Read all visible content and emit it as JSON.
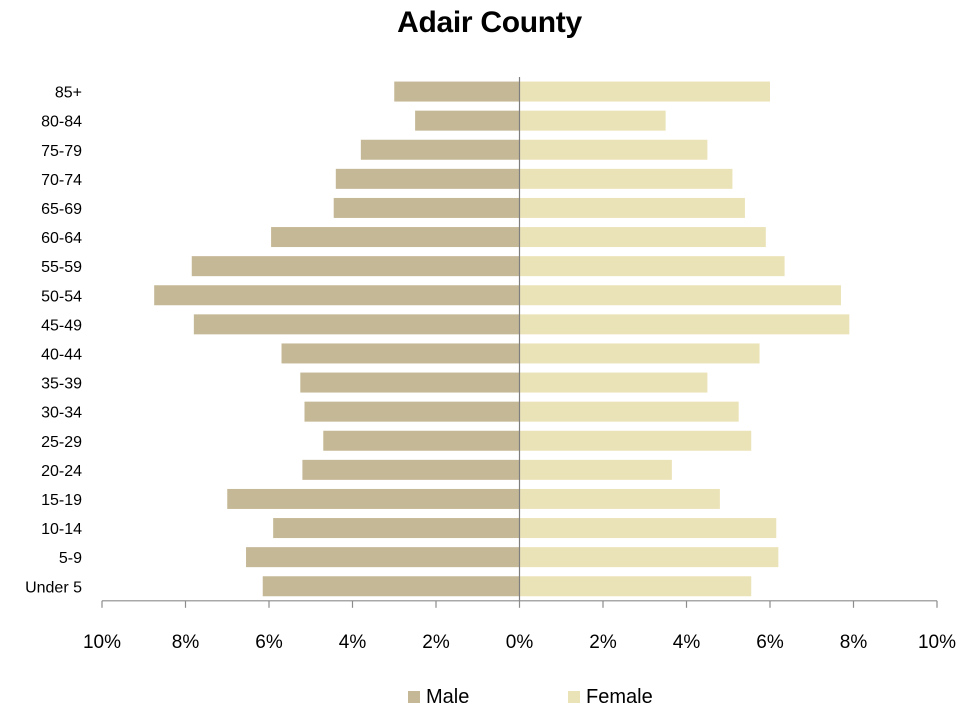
{
  "chart_data": {
    "type": "bar",
    "orientation": "horizontal",
    "layout": "population-pyramid",
    "title": "Adair County",
    "categories": [
      "85+",
      "80-84",
      "75-79",
      "70-74",
      "65-69",
      "60-64",
      "55-59",
      "50-54",
      "45-49",
      "40-44",
      "35-39",
      "30-34",
      "25-29",
      "20-24",
      "15-19",
      "10-14",
      "5-9",
      "Under 5"
    ],
    "series": [
      {
        "name": "Male",
        "color": "#c5b896",
        "values": [
          3.0,
          2.5,
          3.8,
          4.4,
          4.45,
          5.95,
          7.85,
          8.75,
          7.8,
          5.7,
          5.25,
          5.15,
          4.7,
          5.2,
          7.0,
          5.9,
          6.55,
          6.15
        ]
      },
      {
        "name": "Female",
        "color": "#ebe3b8",
        "values": [
          6.0,
          3.5,
          4.5,
          5.1,
          5.4,
          5.9,
          6.35,
          7.7,
          7.9,
          5.75,
          4.5,
          5.25,
          5.55,
          3.65,
          4.8,
          6.15,
          6.2,
          5.55
        ]
      }
    ],
    "xlim": [
      -10,
      10
    ],
    "xticks": [
      -10,
      -8,
      -6,
      -4,
      -2,
      0,
      2,
      4,
      6,
      8,
      10
    ],
    "xtick_labels": [
      "10%",
      "8%",
      "6%",
      "4%",
      "2%",
      "0%",
      "2%",
      "4%",
      "6%",
      "8%",
      "10%"
    ],
    "grid": false,
    "legend_position": "bottom"
  }
}
